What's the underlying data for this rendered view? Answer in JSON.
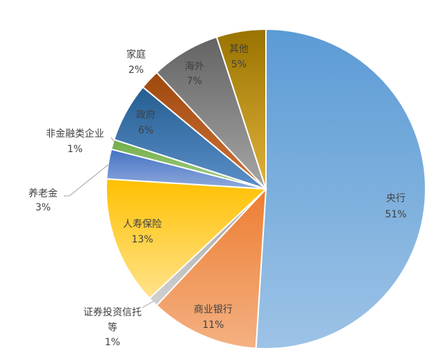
{
  "chart_data": {
    "type": "pie",
    "title": "",
    "start_angle_deg": 0,
    "direction": "clockwise",
    "slices": [
      {
        "name": "央行",
        "value": 51,
        "label": "51%",
        "color": "#5b9bd5",
        "light": "#9dc3e6"
      },
      {
        "name": "商业银行",
        "value": 11,
        "label": "11%",
        "color": "#ed7d31",
        "light": "#f4b183"
      },
      {
        "name": "证券投资信托等",
        "value": 1,
        "label": "1%",
        "color": "#a5a5a5",
        "light": "#d0d0d0"
      },
      {
        "name": "人寿保险",
        "value": 13,
        "label": "13%",
        "color": "#ffc000",
        "light": "#ffe38c"
      },
      {
        "name": "养老金",
        "value": 3,
        "label": "3%",
        "color": "#4472c4",
        "light": "#8faadc"
      },
      {
        "name": "非金融类企业",
        "value": 1,
        "label": "1%",
        "color": "#70ad47",
        "light": "#a9d18e"
      },
      {
        "name": "政府",
        "value": 6,
        "label": "6%",
        "color": "#255e91",
        "light": "#5b8fc9"
      },
      {
        "name": "家庭",
        "value": 2,
        "label": "2%",
        "color": "#9e480e",
        "light": "#d0743a"
      },
      {
        "name": "海外",
        "value": 7,
        "label": "7%",
        "color": "#636363",
        "light": "#a6a6a6"
      },
      {
        "name": "其他",
        "value": 5,
        "label": "5%",
        "color": "#997300",
        "light": "#e0b23a"
      }
    ]
  }
}
